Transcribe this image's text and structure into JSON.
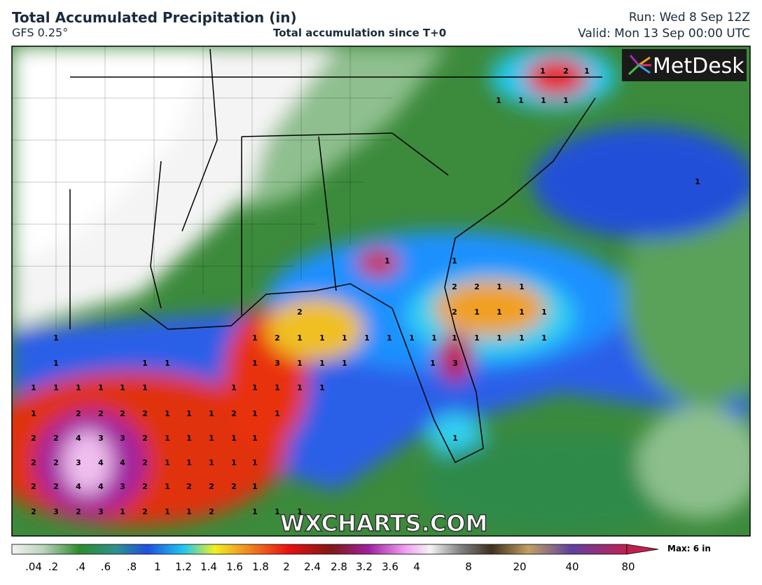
{
  "header": {
    "title": "Total Accumulated Precipitation (in)",
    "model": "GFS 0.25°",
    "subtitle": "Total accumulation since T+0",
    "run": "Run: Wed 8 Sep 12Z",
    "valid": "Valid: Mon 13 Sep 00:00 UTC"
  },
  "logo": "MetDesk",
  "watermark": "WXCHARTS.COM",
  "map_labels": [
    [
      1,
      2,
      1
    ],
    [
      1,
      1,
      1,
      1
    ],
    [
      1
    ],
    [
      1,
      1
    ],
    [
      2,
      2,
      1,
      1
    ],
    [
      2,
      2,
      1,
      1,
      1,
      1
    ],
    [
      1,
      1,
      2,
      1,
      1,
      1,
      1,
      1,
      1,
      1,
      1,
      1,
      1,
      1,
      1
    ],
    [
      1,
      1,
      1,
      1,
      3,
      1,
      1,
      1,
      1,
      3
    ],
    [
      1,
      1,
      1,
      1,
      1,
      1,
      1,
      1,
      1,
      1,
      1
    ],
    [
      1,
      2,
      2,
      2,
      2,
      1,
      1,
      1,
      2,
      1,
      1
    ],
    [
      2,
      2,
      4,
      3,
      3,
      2,
      1,
      1,
      1,
      1,
      1,
      1
    ],
    [
      2,
      2,
      3,
      4,
      4,
      2,
      1,
      1,
      1,
      1,
      1
    ],
    [
      2,
      2,
      4,
      4,
      3,
      2,
      1,
      2,
      2,
      2,
      1
    ],
    [
      2,
      3,
      2,
      3,
      1,
      2,
      1,
      1,
      2,
      1,
      1,
      1
    ]
  ],
  "colorbar": {
    "labels": [
      ".04",
      ".2",
      ".4",
      ".6",
      ".8",
      "1",
      "1.2",
      "1.4",
      "1.6",
      "1.8",
      "2",
      "2.4",
      "2.8",
      "3.2",
      "3.6",
      "4",
      "8",
      "20",
      "40",
      "80"
    ],
    "max": "Max: 6 in"
  }
}
